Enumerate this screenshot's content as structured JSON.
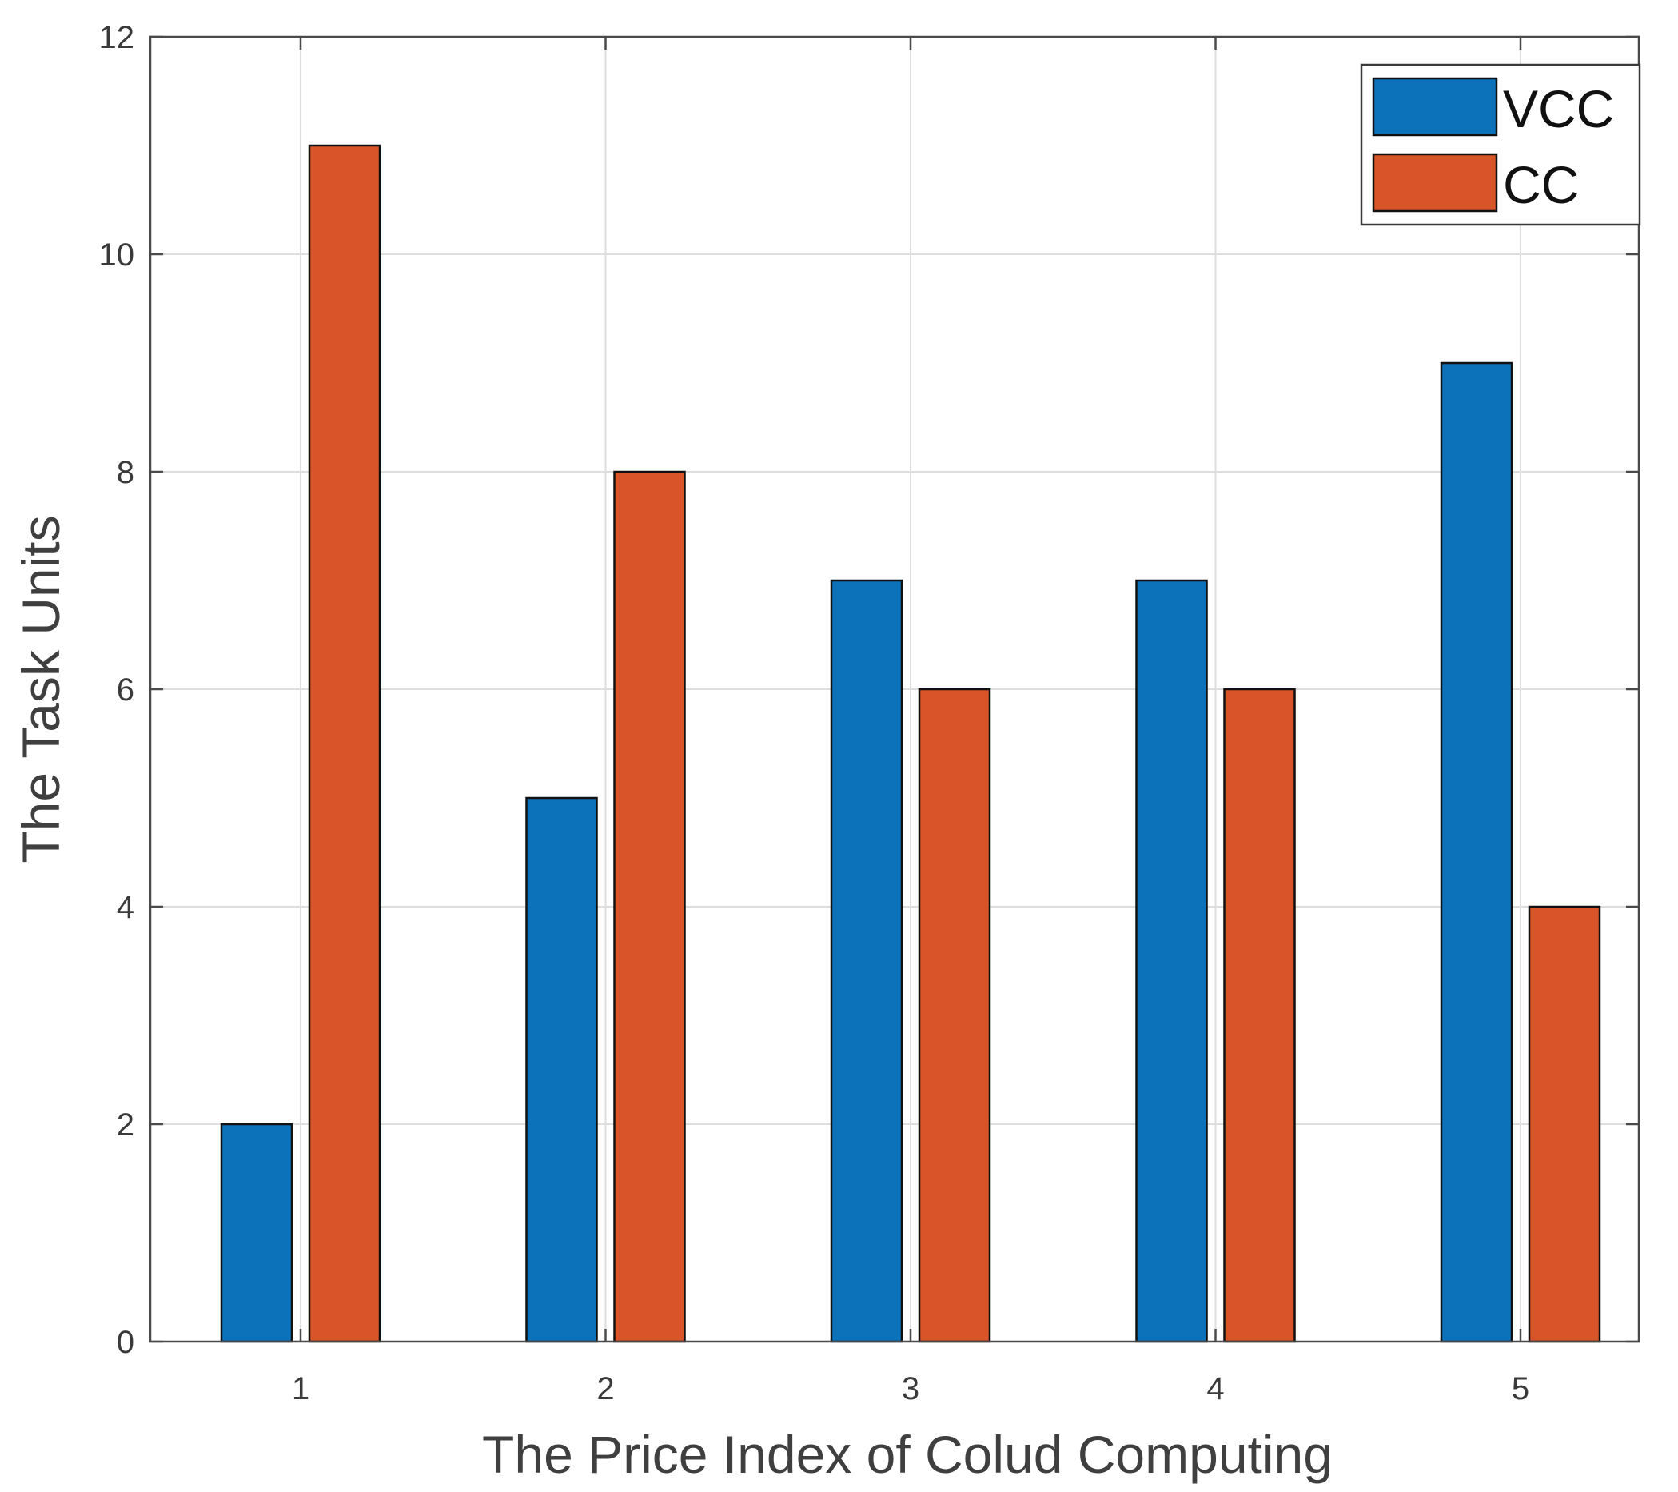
{
  "chart_data": {
    "type": "bar",
    "title": "",
    "xlabel": "The Price Index of Colud Computing",
    "ylabel": "The Task Units",
    "categories": [
      "1",
      "2",
      "3",
      "4",
      "5"
    ],
    "series": [
      {
        "name": "VCC",
        "values": [
          2,
          5,
          7,
          7,
          9
        ],
        "color": "#0c72ba"
      },
      {
        "name": "CC",
        "values": [
          11,
          8,
          6,
          6,
          4
        ],
        "color": "#d95428"
      }
    ],
    "ylim": [
      0,
      12
    ],
    "yticks": [
      0,
      2,
      4,
      6,
      8,
      10,
      12
    ],
    "grid": true,
    "legend_position": "top-right"
  }
}
